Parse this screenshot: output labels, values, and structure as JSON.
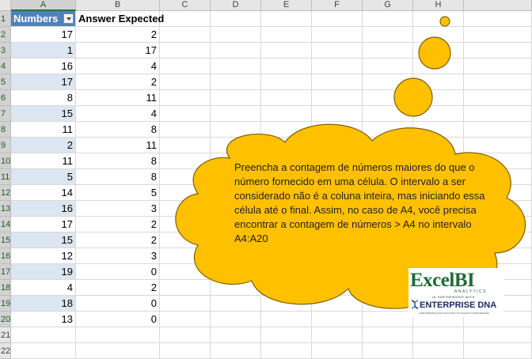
{
  "columns": [
    "A",
    "B",
    "C",
    "D",
    "E",
    "F",
    "G",
    "H"
  ],
  "selected_column": "A",
  "row_numbers": [
    "1",
    "2",
    "3",
    "4",
    "5",
    "6",
    "7",
    "8",
    "9",
    "10",
    "11",
    "12",
    "13",
    "14",
    "15",
    "16",
    "17",
    "18",
    "19",
    "20",
    "21",
    "22"
  ],
  "headers": {
    "numbers": "Numbers",
    "answer": "Answer Expected"
  },
  "rows": [
    {
      "n": "17",
      "a": "2"
    },
    {
      "n": "1",
      "a": "17"
    },
    {
      "n": "16",
      "a": "4"
    },
    {
      "n": "17",
      "a": "2"
    },
    {
      "n": "8",
      "a": "11"
    },
    {
      "n": "15",
      "a": "4"
    },
    {
      "n": "11",
      "a": "8"
    },
    {
      "n": "2",
      "a": "11"
    },
    {
      "n": "11",
      "a": "8"
    },
    {
      "n": "5",
      "a": "8"
    },
    {
      "n": "14",
      "a": "5"
    },
    {
      "n": "16",
      "a": "3"
    },
    {
      "n": "17",
      "a": "2"
    },
    {
      "n": "15",
      "a": "2"
    },
    {
      "n": "12",
      "a": "3"
    },
    {
      "n": "19",
      "a": "0"
    },
    {
      "n": "4",
      "a": "2"
    },
    {
      "n": "18",
      "a": "0"
    },
    {
      "n": "13",
      "a": "0"
    }
  ],
  "callout_text": "Preencha a contagem de números maiores do que o número fornecido em uma célula. O intervalo a ser considerado não é a coluna inteira, mas iniciando essa célula até o final. Assim, no caso de A4, você precisa encontrar a contagem de números > A4 no intervalo A4:A20",
  "logo": {
    "excel": "Excel",
    "bi": "BI",
    "analytics": "ANALYTICS",
    "partnership": "IN PARTNERSHIP WITH",
    "enterprise": "ENTERPRISE DNA",
    "tagline": "EMPOWERING DATA ANALYSTS TO ACHIEVE THEIR DREAMS"
  },
  "colors": {
    "header_fill": "#4f81bd",
    "band_fill": "#dce6f1",
    "cloud_fill": "#ffc000",
    "cloud_stroke": "#7f6000",
    "logo_green": "#1e6b36",
    "logo_navy": "#1d2a6a"
  }
}
